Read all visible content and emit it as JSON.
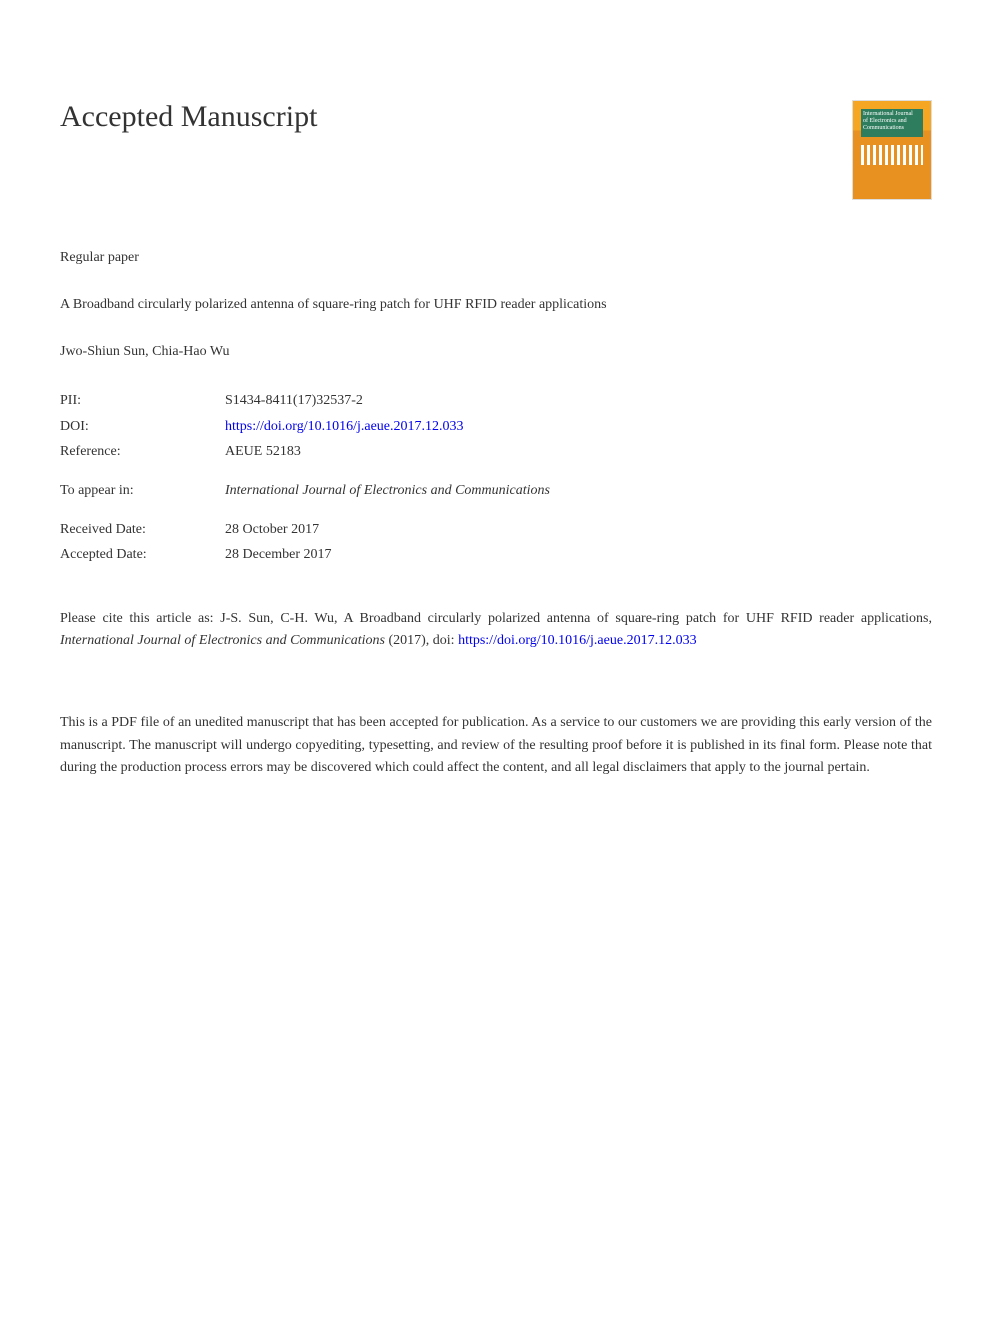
{
  "heading": "Accepted Manuscript",
  "journal_thumb": {
    "line1": "International Journal",
    "line2": "of Electronics and",
    "line3": "Communications",
    "top_color": "#2e7d5f",
    "bg_color": "#e89020"
  },
  "paper_type": "Regular paper",
  "title": "A Broadband circularly polarized antenna of square-ring patch for UHF RFID reader applications",
  "authors": "Jwo-Shiun Sun, Chia-Hao Wu",
  "metadata": {
    "pii": {
      "label": "PII:",
      "value": "S1434-8411(17)32537-2"
    },
    "doi": {
      "label": "DOI:",
      "value": "https://doi.org/10.1016/j.aeue.2017.12.033"
    },
    "reference": {
      "label": "Reference:",
      "value": "AEUE 52183"
    },
    "appear_in": {
      "label": "To appear in:",
      "value": "International Journal of Electronics and Communications"
    },
    "received": {
      "label": "Received Date:",
      "value": "28 October 2017"
    },
    "accepted": {
      "label": "Accepted Date:",
      "value": "28 December 2017"
    }
  },
  "citation": {
    "prefix": "Please cite this article as: J-S. Sun, C-H. Wu, A Broadband circularly polarized antenna of square-ring patch for UHF RFID reader applications, ",
    "journal": "International Journal of Electronics and Communications",
    "year": " (2017), doi: ",
    "link": "https://doi.org/10.1016/j.aeue.2017.12.033"
  },
  "disclaimer": "This is a PDF file of an unedited manuscript that has been accepted for publication. As a service to our customers we are providing this early version of the manuscript. The manuscript will undergo copyediting, typesetting, and review of the resulting proof before it is published in its final form. Please note that during the production process errors may be discovered which could affect the content, and all legal disclaimers that apply to the journal pertain.",
  "colors": {
    "text": "#333333",
    "link": "#0000ee",
    "background": "#ffffff"
  },
  "typography": {
    "body_font": "Georgia, Times New Roman, serif",
    "heading_size": 30,
    "body_size": 14
  }
}
